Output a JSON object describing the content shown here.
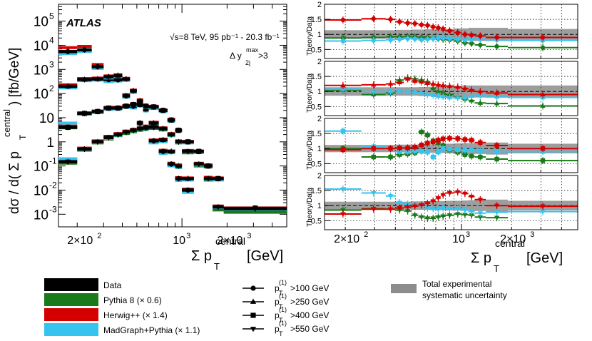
{
  "colors": {
    "data": "#000000",
    "pythia": "#1a7a1a",
    "herwig": "#d40000",
    "madgraph": "#35c4f0",
    "band": "#8c8c8c"
  },
  "chart_data": [
    {
      "type": "scatter",
      "panel": "main",
      "xlabel": "Σ p_T^central [GeV]",
      "ylabel": "dσ / d( Σ p_T^central ) [fb/GeV]",
      "xscale": "log",
      "yscale": "log",
      "xlim": [
        150,
        5000
      ],
      "ylim": [
        0.0003,
        500000
      ],
      "title": "ATLAS",
      "annotation_energy": "√s=8 TeV, 95 pb⁻¹ - 20.3 fb⁻¹",
      "annotation_cut": "Δ y_2j^max > 3",
      "x_bins": [
        [
          150,
          200
        ],
        [
          200,
          250
        ],
        [
          250,
          300
        ],
        [
          300,
          350
        ],
        [
          350,
          400
        ],
        [
          400,
          450
        ],
        [
          450,
          500
        ],
        [
          500,
          550
        ],
        [
          550,
          600
        ],
        [
          600,
          700
        ],
        [
          700,
          800
        ],
        [
          800,
          900
        ],
        [
          900,
          1000
        ],
        [
          1000,
          1200
        ],
        [
          1200,
          1400
        ],
        [
          1400,
          1600
        ],
        [
          1600,
          1900
        ],
        [
          1900,
          5000
        ]
      ],
      "series": [
        {
          "name": "p_T^(1) > 100 GeV",
          "marker": "circle",
          "first_bin": 0,
          "data": [
            5500,
            6500,
            1300,
            380,
            370,
            80,
            30,
            6.0,
            4.0,
            1.1,
            0.4,
            0.12,
            0.03,
            0.01
          ],
          "pythia": [
            5000,
            6000,
            1200,
            350,
            350,
            75,
            28,
            5.5,
            3.7,
            1.0,
            0.37,
            0.11,
            0.028,
            0.009
          ],
          "herwig": [
            8000,
            9000,
            1600,
            500,
            450,
            90,
            35,
            6.5,
            4.5,
            1.2,
            0.45,
            0.13,
            0.033,
            0.011
          ],
          "madgraph": [
            4500,
            5500,
            1100,
            310,
            330,
            70,
            25,
            5.0,
            3.2,
            0.9,
            0.33,
            0.1,
            0.025,
            0.008
          ]
        },
        {
          "name": "p_T^(1) > 250 GeV",
          "marker": "triangle-up",
          "first_bin": 0,
          "data": [
            200,
            380,
            400,
            500,
            560,
            400,
            130,
            50,
            22,
            6,
            1.2,
            0.4,
            0.1,
            0.03
          ],
          "pythia": [
            190,
            360,
            380,
            470,
            530,
            370,
            120,
            46,
            20,
            5.5,
            1.1,
            0.37,
            0.09,
            0.028
          ],
          "herwig": [
            230,
            420,
            440,
            540,
            600,
            430,
            140,
            55,
            24,
            6.5,
            1.3,
            0.42,
            0.11,
            0.032
          ],
          "madgraph": [
            170,
            340,
            360,
            440,
            500,
            350,
            110,
            44,
            19,
            5.2,
            1.0,
            0.35,
            0.085,
            0.026
          ]
        },
        {
          "name": "p_T^(1) > 400 GeV",
          "marker": "square",
          "first_bin": 0,
          "data": [
            4,
            15,
            18,
            25,
            25,
            30,
            35,
            35,
            30,
            28,
            20,
            8,
            3,
            1,
            0.4,
            0.1,
            0.03,
            0.0018
          ],
          "pythia": [
            3.8,
            14,
            17,
            23,
            24,
            28,
            33,
            33,
            28,
            26,
            19,
            7.5,
            2.8,
            0.95,
            0.38,
            0.09,
            0.028,
            0.0013
          ],
          "herwig": [
            4.5,
            16,
            19,
            27,
            27,
            32,
            37,
            37,
            32,
            30,
            21,
            8.5,
            3.2,
            1.05,
            0.42,
            0.11,
            0.032,
            0.0018
          ],
          "madgraph": [
            6,
            14,
            16,
            22,
            23,
            27,
            32,
            31,
            26,
            24,
            18,
            7.2,
            2.7,
            0.9,
            0.36,
            0.09,
            0.026,
            0.0016
          ]
        },
        {
          "name": "p_T^(1) > 550 GeV",
          "marker": "triangle-down",
          "first_bin": 0,
          "data": [
            0.15,
            0.5,
            1,
            1.5,
            2,
            2.5,
            3,
            3.5,
            3.7,
            4,
            3.5,
            2,
            1,
            0.4,
            0.12,
            0.03,
            0.002,
            0.0017
          ],
          "pythia": [
            0.13,
            0.45,
            0.9,
            1.3,
            1.8,
            2.2,
            2.6,
            3.0,
            3.3,
            3.6,
            3.1,
            1.8,
            0.9,
            0.35,
            0.1,
            0.026,
            0.0015,
            0.0012
          ],
          "herwig": [
            0.17,
            0.55,
            1.1,
            1.7,
            2.2,
            2.8,
            3.3,
            3.8,
            4.0,
            4.4,
            3.8,
            2.2,
            1.1,
            0.44,
            0.13,
            0.034,
            0.0022,
            0.0018
          ],
          "madgraph": [
            0.2,
            0.48,
            0.95,
            1.4,
            1.9,
            2.4,
            2.9,
            3.4,
            3.5,
            3.9,
            3.4,
            1.9,
            0.95,
            0.38,
            0.11,
            0.028,
            0.0019,
            0.0016
          ]
        }
      ]
    },
    {
      "type": "scatter",
      "panel": "ratio",
      "xlabel": "Σ p_T^central [GeV]",
      "ylabel": "Theory/Data",
      "xscale": "log",
      "xlim": [
        150,
        5000
      ],
      "ylim": [
        0.2,
        2
      ],
      "ratio_yticks": [
        "0.5",
        "1",
        "1.5",
        "2"
      ],
      "x_bins": [
        [
          150,
          250
        ],
        [
          250,
          350
        ],
        [
          350,
          400
        ],
        [
          400,
          450
        ],
        [
          450,
          500
        ],
        [
          500,
          550
        ],
        [
          550,
          600
        ],
        [
          600,
          650
        ],
        [
          650,
          700
        ],
        [
          700,
          750
        ],
        [
          750,
          800
        ],
        [
          800,
          900
        ],
        [
          900,
          1000
        ],
        [
          1000,
          1100
        ],
        [
          1100,
          1200
        ],
        [
          1200,
          1400
        ],
        [
          1400,
          1900
        ],
        [
          1900,
          5000
        ]
      ],
      "panels": [
        {
          "name": "p_T^(1) > 100 GeV",
          "herwig": [
            1.48,
            1.52,
            1.5,
            1.42,
            1.38,
            1.36,
            1.32,
            1.3,
            1.25,
            1.22,
            1.18,
            1.12,
            1.06,
            1.0,
            0.98,
            0.95,
            0.9,
            0.9
          ],
          "pythia": [
            0.88,
            0.9,
            0.92,
            0.92,
            0.93,
            0.92,
            0.9,
            0.9,
            0.88,
            0.86,
            0.84,
            0.82,
            0.78,
            0.72,
            0.7,
            0.65,
            0.6,
            0.56
          ],
          "madgraph": [
            0.78,
            0.8,
            0.82,
            0.84,
            0.86,
            0.85,
            0.82,
            0.84,
            0.86,
            0.88,
            0.88,
            0.86,
            0.84,
            0.82,
            0.85,
            0.84,
            0.82,
            0.8
          ],
          "band_half": [
            0.14,
            0.14,
            0.14,
            0.15,
            0.15,
            0.16,
            0.16,
            0.17,
            0.17,
            0.18,
            0.18,
            0.18,
            0.2,
            0.2,
            0.22,
            0.22,
            0.22,
            0.18
          ]
        },
        {
          "name": "p_T^(1) > 250 GeV",
          "herwig": [
            1.2,
            1.22,
            1.25,
            1.3,
            1.42,
            1.35,
            1.32,
            1.28,
            1.25,
            1.22,
            1.2,
            1.18,
            1.15,
            1.1,
            1.05,
            1.0,
            0.95,
            0.9
          ],
          "pythia": [
            1.05,
            0.9,
            0.95,
            1.38,
            1.45,
            1.42,
            1.38,
            1.32,
            1.1,
            1.0,
            0.95,
            0.9,
            0.82,
            0.75,
            0.7,
            0.62,
            0.6,
            0.52
          ],
          "madgraph": [
            1.08,
            1.0,
            1.0,
            1.02,
            1.0,
            0.98,
            0.96,
            0.9,
            0.88,
            0.85,
            0.83,
            0.8,
            0.8,
            0.8,
            0.85,
            0.88,
            0.82,
            0.8
          ],
          "band_half": [
            0.14,
            0.14,
            0.14,
            0.14,
            0.14,
            0.14,
            0.15,
            0.15,
            0.16,
            0.16,
            0.17,
            0.18,
            0.18,
            0.2,
            0.2,
            0.2,
            0.2,
            0.2
          ]
        },
        {
          "name": "p_T^(1) > 400 GeV",
          "herwig": [
            0.96,
            1.0,
            1.0,
            1.02,
            1.02,
            1.05,
            1.12,
            1.18,
            1.22,
            1.28,
            1.32,
            1.34,
            1.33,
            1.3,
            1.28,
            1.2,
            1.1,
            1.0
          ],
          "pythia": [
            1.0,
            0.72,
            0.72,
            0.8,
            0.82,
            0.86,
            1.55,
            1.45,
            1.25,
            1.2,
            1.1,
            0.95,
            0.88,
            0.8,
            0.75,
            0.72,
            0.65,
            0.6
          ],
          "madgraph": [
            1.58,
            1.06,
            0.98,
            0.9,
            0.9,
            0.92,
            0.9,
            0.88,
            0.72,
            0.88,
            1.0,
            0.98,
            0.96,
            0.95,
            0.95,
            0.92,
            0.9,
            0.9
          ],
          "band_half": [
            0.12,
            0.12,
            0.12,
            0.13,
            0.13,
            0.13,
            0.13,
            0.14,
            0.14,
            0.15,
            0.15,
            0.16,
            0.17,
            0.18,
            0.18,
            0.18,
            0.2,
            0.16
          ]
        },
        {
          "name": "p_T^(1) > 550 GeV",
          "herwig": [
            0.72,
            0.88,
            0.88,
            0.92,
            0.95,
            0.98,
            1.02,
            1.08,
            1.15,
            1.25,
            1.35,
            1.42,
            1.45,
            1.4,
            1.3,
            1.2,
            1.0,
            0.98
          ],
          "pythia": [
            0.85,
            0.9,
            0.88,
            0.85,
            0.82,
            0.68,
            0.62,
            0.58,
            0.58,
            0.62,
            0.65,
            0.68,
            0.72,
            0.7,
            0.68,
            0.62,
            0.6,
            0.98
          ],
          "madgraph": [
            1.55,
            1.42,
            1.32,
            1.1,
            1.05,
            1.0,
            1.02,
            0.92,
            0.9,
            0.88,
            0.92,
            0.9,
            0.9,
            0.85,
            0.8,
            0.75,
            0.78,
            0.8
          ],
          "band_half": [
            0.13,
            0.13,
            0.13,
            0.13,
            0.13,
            0.14,
            0.14,
            0.14,
            0.15,
            0.15,
            0.15,
            0.16,
            0.16,
            0.17,
            0.18,
            0.18,
            0.2,
            0.16
          ]
        }
      ]
    }
  ],
  "legend": {
    "samples": [
      {
        "key": "data",
        "label": "Data"
      },
      {
        "key": "pythia",
        "label": "Pythia 8 (× 0.6)"
      },
      {
        "key": "herwig",
        "label": "Herwig++ (× 1.4)"
      },
      {
        "key": "madgraph",
        "label": "MadGraph+Pythia (× 1.1)"
      }
    ],
    "markers": [
      {
        "marker": "circle",
        "label": "p_T^(1) >100 GeV"
      },
      {
        "marker": "triangle-up",
        "label": "p_T^(1) >250 GeV"
      },
      {
        "marker": "square",
        "label": "p_T^(1) >400 GeV"
      },
      {
        "marker": "triangle-down",
        "label": "p_T^(1) >550 GeV"
      }
    ],
    "band_label_1": "Total experimental",
    "band_label_2": "systematic uncertainty"
  }
}
